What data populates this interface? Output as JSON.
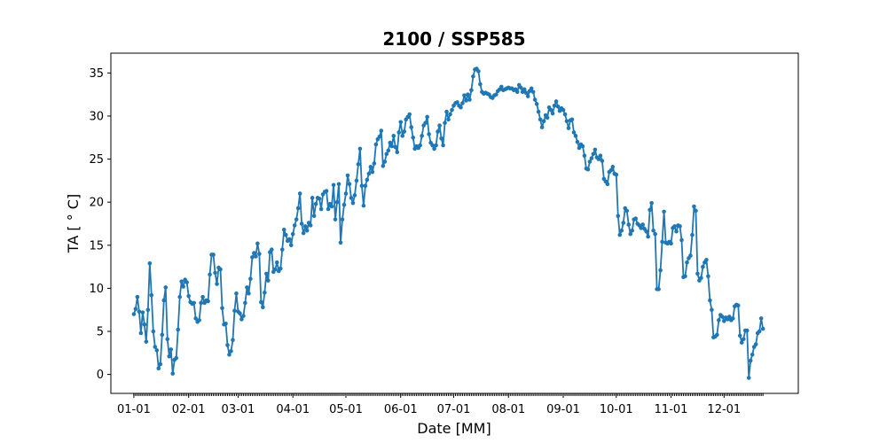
{
  "chart_data": {
    "type": "line",
    "title": "2100 / SSP585",
    "xlabel": "Date [MM]",
    "ylabel": "TA [$^\\circ$C]",
    "ylabel_display": "TA [ ° C]",
    "x_start": "2100-01-01",
    "x_tick_labels": [
      "01-01",
      "02-01",
      "03-01",
      "04-01",
      "05-01",
      "06-01",
      "07-01",
      "08-01",
      "09-01",
      "10-01",
      "11-01",
      "12-01"
    ],
    "xlim": [
      "2099-12-19",
      "2101-01-12"
    ],
    "y_ticks": [
      0,
      5,
      10,
      15,
      20,
      25,
      30,
      35
    ],
    "ylim": [
      -2.2,
      37.3
    ],
    "grid": false,
    "legend": "none",
    "marker": "dot",
    "line_color": "#1f77b4",
    "series": [
      {
        "values": [
          7.0,
          7.6,
          9.0,
          7.3,
          4.8,
          7.2,
          5.8,
          3.8,
          7.5,
          12.9,
          9.2,
          5.0,
          3.2,
          2.8,
          0.7,
          1.2,
          4.6,
          8.6,
          10.1,
          4.1,
          2.1,
          2.9,
          0.1,
          1.7,
          1.9,
          5.2,
          9.0,
          10.8,
          10.2,
          11.0,
          10.7,
          9.1,
          8.4,
          8.2,
          8.3,
          6.5,
          6.1,
          6.3,
          8.3,
          9.0,
          8.3,
          8.6,
          8.5,
          11.6,
          13.9,
          13.9,
          11.8,
          10.5,
          12.4,
          12.2,
          7.7,
          5.8,
          5.9,
          3.4,
          2.3,
          2.7,
          4.0,
          7.4,
          9.4,
          7.3,
          7.1,
          6.4,
          6.8,
          8.3,
          10.1,
          9.4,
          11.1,
          13.6,
          14.1,
          13.7,
          15.2,
          14.0,
          8.4,
          7.8,
          9.5,
          11.7,
          10.9,
          14.2,
          14.5,
          11.9,
          12.2,
          13.0,
          12.0,
          12.3,
          14.5,
          16.8,
          16.2,
          15.5,
          15.7,
          15.0,
          16.3,
          17.3,
          18.0,
          19.3,
          21.0,
          17.5,
          16.4,
          17.2,
          16.7,
          17.6,
          17.3,
          20.5,
          18.4,
          19.8,
          20.5,
          20.4,
          19.2,
          20.9,
          21.2,
          21.3,
          19.2,
          19.8,
          19.5,
          22.0,
          18.0,
          20.0,
          22.1,
          15.3,
          18.0,
          19.7,
          21.0,
          23.1,
          22.1,
          20.5,
          19.9,
          20.8,
          22.5,
          24.4,
          26.2,
          21.9,
          19.6,
          21.9,
          22.6,
          23.3,
          24.1,
          23.5,
          24.5,
          26.7,
          27.3,
          27.6,
          28.3,
          24.2,
          24.7,
          25.6,
          26.0,
          26.9,
          26.5,
          27.7,
          26.4,
          25.8,
          28.1,
          29.3,
          27.7,
          28.2,
          29.6,
          29.9,
          30.2,
          28.7,
          27.5,
          26.2,
          26.5,
          26.3,
          26.6,
          27.7,
          28.9,
          29.2,
          29.9,
          27.9,
          26.9,
          26.6,
          26.2,
          26.6,
          28.2,
          28.9,
          27.4,
          26.6,
          29.2,
          30.5,
          29.6,
          30.2,
          30.7,
          31.2,
          31.5,
          31.6,
          31.2,
          31.0,
          31.5,
          32.4,
          31.8,
          32.5,
          31.9,
          33.0,
          34.6,
          35.4,
          35.5,
          35.2,
          33.7,
          32.8,
          32.6,
          32.7,
          32.6,
          32.5,
          32.2,
          32.1,
          32.4,
          32.5,
          32.9,
          33.1,
          33.4,
          33.0,
          33.1,
          33.2,
          33.3,
          33.2,
          33.2,
          33.0,
          33.1,
          32.8,
          33.6,
          33.3,
          32.8,
          33.1,
          32.7,
          32.3,
          32.9,
          33.2,
          32.8,
          31.9,
          31.4,
          30.5,
          29.6,
          28.7,
          29.4,
          30.1,
          29.8,
          31.0,
          30.7,
          30.3,
          31.2,
          31.7,
          31.1,
          30.6,
          30.9,
          30.7,
          30.2,
          29.4,
          28.6,
          29.5,
          29.6,
          28.1,
          27.7,
          27.0,
          26.3,
          26.7,
          26.5,
          25.4,
          23.9,
          23.8,
          24.7,
          25.1,
          25.6,
          26.1,
          25.2,
          25.0,
          25.4,
          24.8,
          22.7,
          22.4,
          22.1,
          23.5,
          23.7,
          24.1,
          23.3,
          23.2,
          18.4,
          16.2,
          16.7,
          17.6,
          19.3,
          19.0,
          17.4,
          16.3,
          16.7,
          18.0,
          18.1,
          17.5,
          17.3,
          17.0,
          17.4,
          16.9,
          16.6,
          16.0,
          19.1,
          19.9,
          16.7,
          16.3,
          9.9,
          9.9,
          12.1,
          15.4,
          18.9,
          15.3,
          15.2,
          15.4,
          15.2,
          17.0,
          17.2,
          16.6,
          17.3,
          17.2,
          15.6,
          11.3,
          11.4,
          13.0,
          13.5,
          13.8,
          16.2,
          19.5,
          19.0,
          11.7,
          10.9,
          11.2,
          12.5,
          13.0,
          13.3,
          11.4,
          8.6,
          7.5,
          4.3,
          4.4,
          4.6,
          6.3,
          6.9,
          6.7,
          6.2,
          6.6,
          6.4,
          6.7,
          6.3,
          6.5,
          7.9,
          8.1,
          8.0,
          4.5,
          3.7,
          4.1,
          5.1,
          5.1,
          -0.4,
          1.6,
          2.3,
          3.2,
          3.5,
          4.8,
          5.0,
          6.5,
          5.3
        ]
      }
    ]
  }
}
